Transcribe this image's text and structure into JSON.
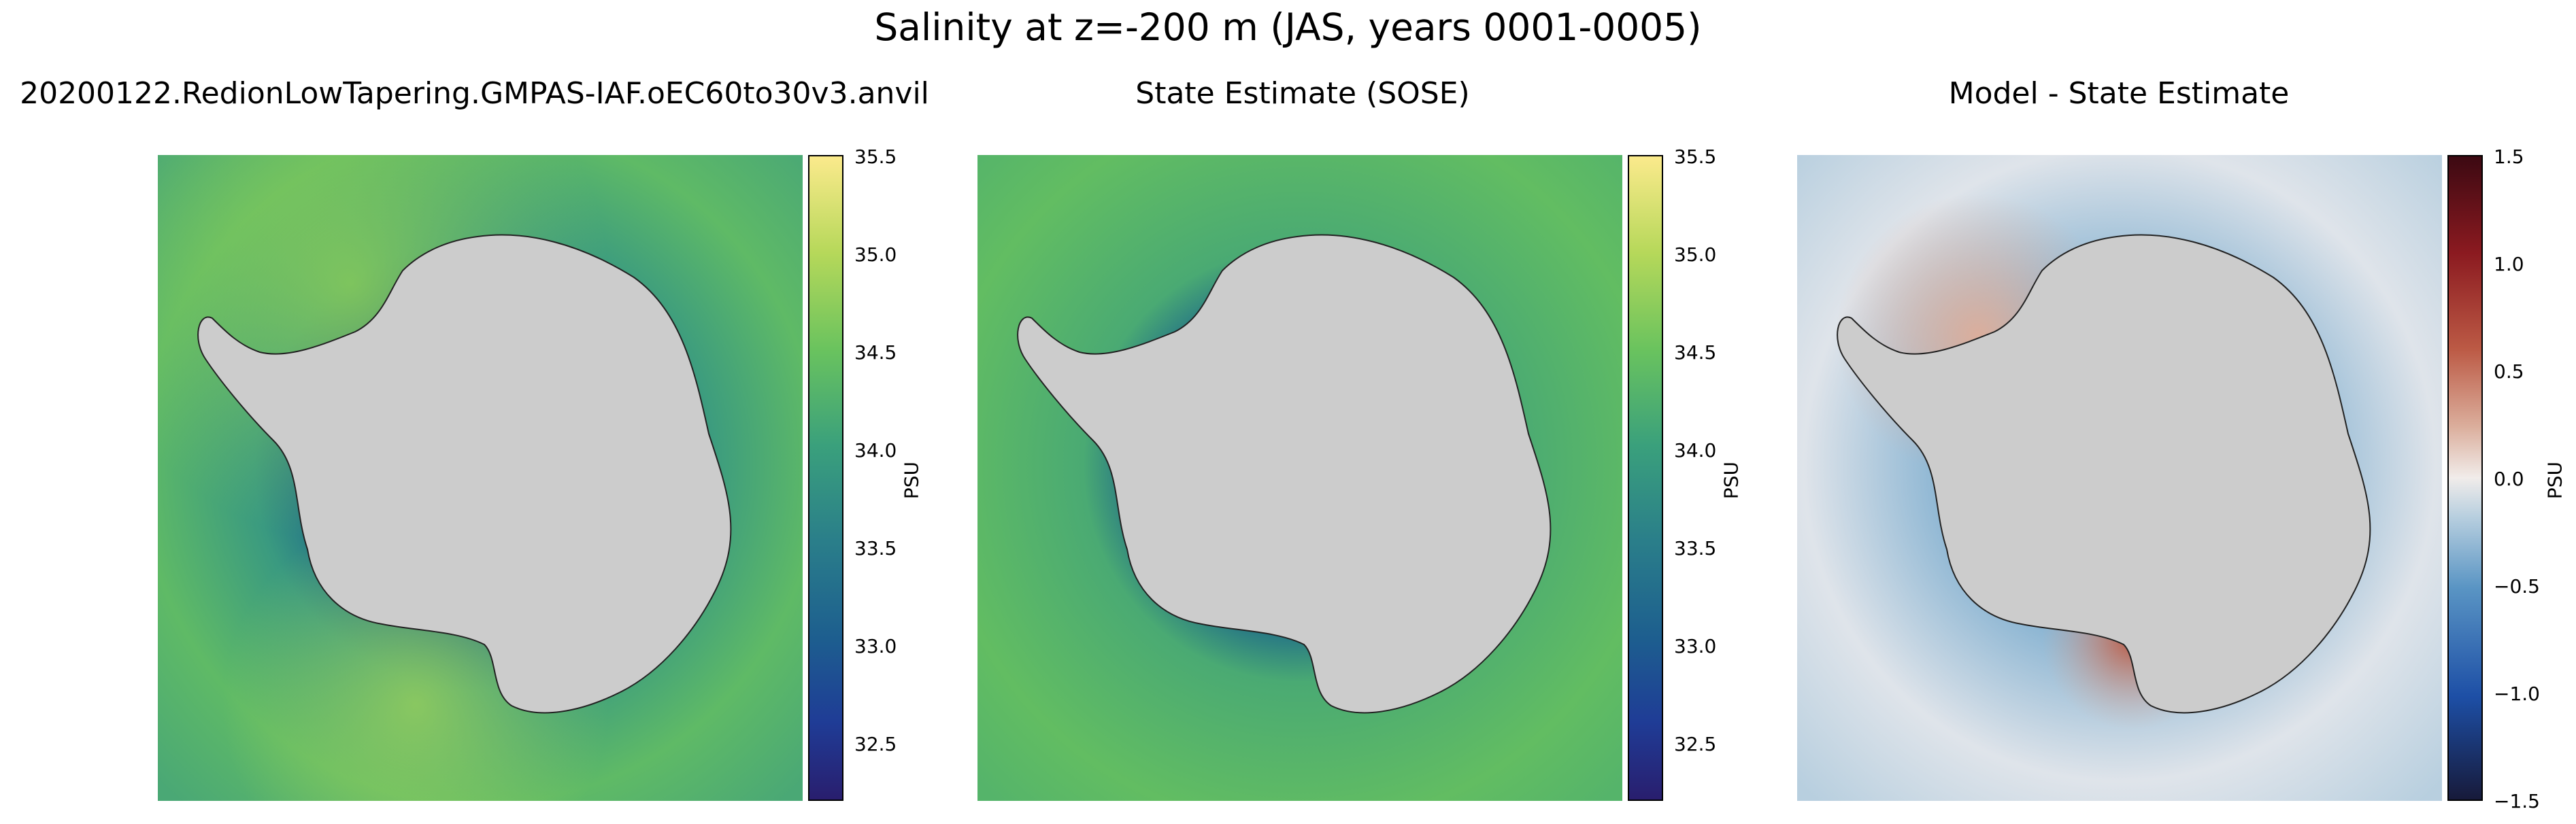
{
  "title": "Salinity at z=-200 m (JAS, years 0001-0005)",
  "panels": [
    {
      "title": "20200122.RedionLowTapering.GMPAS-IAF.oEC60to30v3.anvil",
      "colorbar": {
        "label": "PSU",
        "ticks": [
          "32.5",
          "33.0",
          "33.5",
          "34.0",
          "34.5",
          "35.0",
          "35.5"
        ],
        "range": [
          32.2,
          35.5
        ],
        "colormap": "haline",
        "colors": [
          "#291e6e",
          "#1f3c96",
          "#1d5e8f",
          "#2a7e8a",
          "#3aa07c",
          "#6ac35e",
          "#b6d85a",
          "#fbea8c"
        ]
      }
    },
    {
      "title": "State Estimate (SOSE)",
      "colorbar": {
        "label": "PSU",
        "ticks": [
          "32.5",
          "33.0",
          "33.5",
          "34.0",
          "34.5",
          "35.0",
          "35.5"
        ],
        "range": [
          32.2,
          35.5
        ],
        "colormap": "haline",
        "colors": [
          "#291e6e",
          "#1f3c96",
          "#1d5e8f",
          "#2a7e8a",
          "#3aa07c",
          "#6ac35e",
          "#b6d85a",
          "#fbea8c"
        ]
      }
    },
    {
      "title": "Model - State Estimate",
      "colorbar": {
        "label": "PSU",
        "ticks": [
          "−1.5",
          "−1.0",
          "−0.5",
          "0.0",
          "0.5",
          "1.0",
          "1.5"
        ],
        "range": [
          -1.5,
          1.5
        ],
        "colormap": "balance",
        "colors": [
          "#171a3a",
          "#1d4fa6",
          "#5a95c4",
          "#b8cfdf",
          "#f1ecea",
          "#dbae9c",
          "#bc5a45",
          "#8b1a20",
          "#3c0912"
        ]
      }
    }
  ],
  "land_color": "#cccccc"
}
